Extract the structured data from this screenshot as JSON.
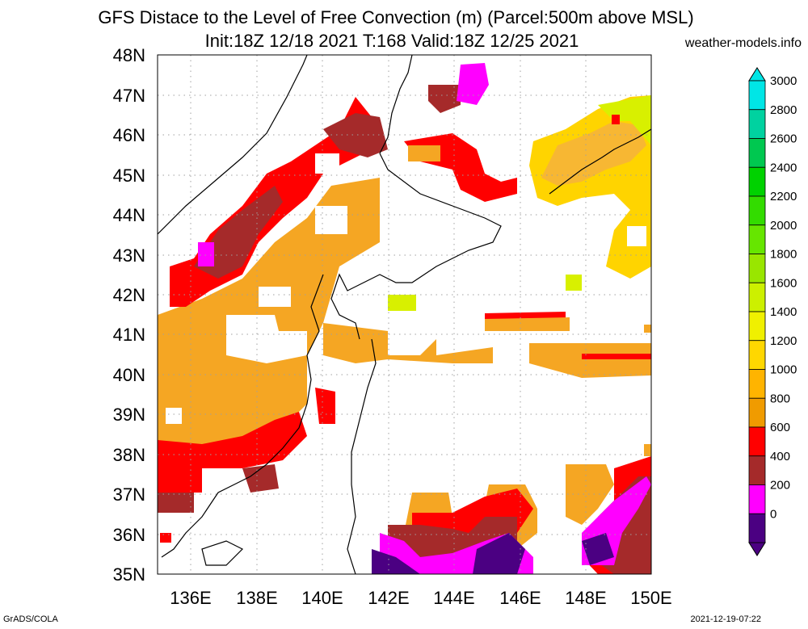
{
  "header": {
    "title_line1": "GFS Distace to the Level of Free Convection (m) (Parcel:500m above MSL)",
    "title_line2": "Init:18Z 12/18 2021 T:168 Valid:18Z 12/25 2021",
    "site": "weather-models.info"
  },
  "axes": {
    "lat_labels": [
      "48N",
      "47N",
      "46N",
      "45N",
      "44N",
      "43N",
      "42N",
      "41N",
      "40N",
      "39N",
      "38N",
      "37N",
      "36N",
      "35N"
    ],
    "lon_labels": [
      "136E",
      "138E",
      "140E",
      "142E",
      "144E",
      "146E",
      "148E",
      "150E"
    ]
  },
  "colorbar": {
    "labels": [
      "3000",
      "2800",
      "2600",
      "2400",
      "2200",
      "2000",
      "1800",
      "1600",
      "1400",
      "1200",
      "1000",
      "800",
      "600",
      "400",
      "200",
      "0"
    ],
    "colors": [
      "#00e6e6",
      "#00d2a0",
      "#00c850",
      "#00d200",
      "#33dc00",
      "#66e600",
      "#99e600",
      "#ccf000",
      "#f0f000",
      "#ffd700",
      "#ffb400",
      "#f09b00",
      "#ff0000",
      "#a52a2a",
      "#ff00ff",
      "#4b0082"
    ]
  },
  "palette": {
    "orange": "#f5a623",
    "lightorange": "#f7b733",
    "yellow": "#ffd400",
    "lime": "#d8f000",
    "red": "#ff0000",
    "brown": "#a52a2a",
    "magenta": "#ff00ff",
    "purple": "#4b0082"
  },
  "footer": {
    "left": "GrADS/COLA",
    "right": "2021-12-19-07:22"
  }
}
